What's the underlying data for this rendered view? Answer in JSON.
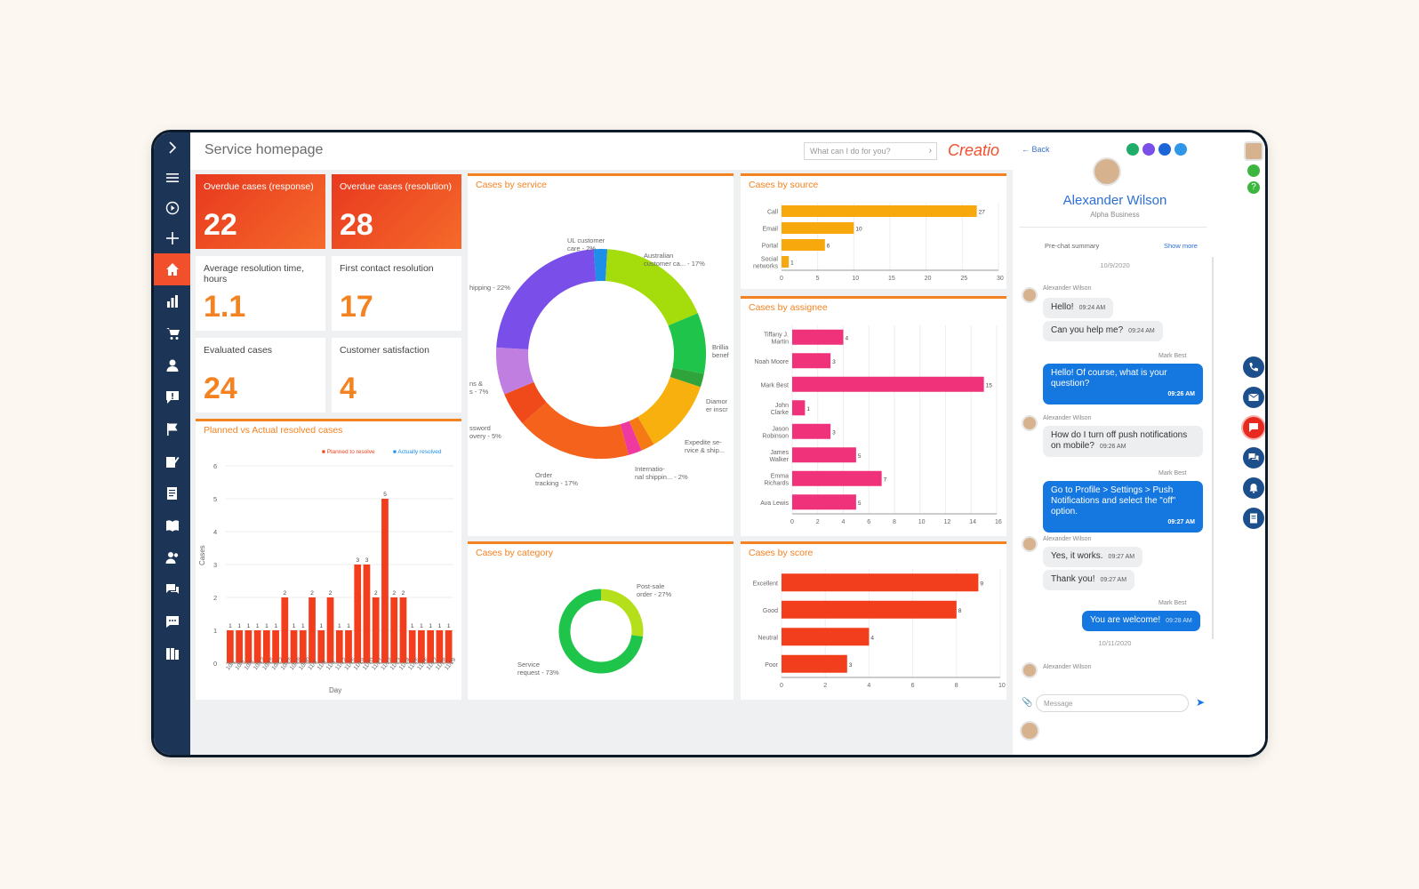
{
  "header": {
    "title": "Service homepage",
    "search_placeholder": "What can I do for you?",
    "logo": "Creatio"
  },
  "kpis": [
    {
      "label": "Overdue cases (response)",
      "value": "22"
    },
    {
      "label": "Overdue cases (resolution)",
      "value": "28"
    },
    {
      "label": "Average resolution time, hours",
      "value": "1.1"
    },
    {
      "label": "First contact resolution",
      "value": "17"
    },
    {
      "label": "Evaluated cases",
      "value": "24"
    },
    {
      "label": "Customer satisfaction",
      "value": "4"
    }
  ],
  "sidebar": {
    "icons": [
      "chevron-right-icon",
      "menu-icon",
      "play-icon",
      "plus-icon",
      "home-icon",
      "bar-chart-icon",
      "cart-icon",
      "person-icon",
      "alert-icon",
      "flag-icon",
      "edit-icon",
      "notes-icon",
      "book-icon",
      "contacts-icon",
      "chat-icon",
      "message-icon",
      "library-icon"
    ]
  },
  "chart_data": [
    {
      "type": "bar",
      "title": "Planned vs Actual resolved cases",
      "legend": [
        "Planned to resolve",
        "Actually resolved"
      ],
      "xlabel": "Day",
      "ylabel": "Cases",
      "ylim": [
        0,
        6
      ],
      "yticks": [
        "0",
        "1",
        "2",
        "3",
        "4",
        "5",
        "6"
      ],
      "categories": [
        "10/1",
        "10/5",
        "10/8",
        "10/12",
        "10/15",
        "10/22",
        "10/25",
        "10/28",
        "10/30",
        "11/3",
        "11/5",
        "11/8",
        "11/12",
        "11/15",
        "11/19",
        "11/20",
        "11/21",
        "11/22",
        "11/23",
        "11/24",
        "11/25",
        "11/26",
        "11/27",
        "11/28",
        "11/29"
      ],
      "values": [
        1,
        1,
        1,
        1,
        1,
        1,
        2,
        1,
        1,
        2,
        1,
        2,
        1,
        1,
        3,
        3,
        2,
        5,
        2,
        2,
        1,
        1,
        1,
        1,
        1
      ],
      "color": "#f23e1c"
    },
    {
      "type": "pie",
      "title": "Cases by service",
      "slices": [
        {
          "label": "UL customer care - 2%",
          "value": 2,
          "color": "#1e8fe8"
        },
        {
          "label": "Australian customer ca... - 17%",
          "value": 17,
          "color": "#a4dc0c"
        },
        {
          "label": "Brillia benef",
          "value": 9,
          "color": "#1fc44a"
        },
        {
          "label": "Diamor er inscr",
          "value": 2,
          "color": "#2ea43a"
        },
        {
          "label": "Expedite se- rvice & ship...",
          "value": 11,
          "color": "#f7b00d"
        },
        {
          "label": "Internatio- nal shippin... - 2%",
          "value": 2,
          "color": "#f57a16"
        },
        {
          "label": "",
          "value": 2,
          "color": "#ee3aa0"
        },
        {
          "label": "Order tracking - 17%",
          "value": 17,
          "color": "#f5621c"
        },
        {
          "label": "ssword overy - 5%",
          "value": 5,
          "color": "#f04a1a"
        },
        {
          "label": "ns & s - 7%",
          "value": 7,
          "color": "#c07ee0"
        },
        {
          "label": "hipping - 22%",
          "value": 22,
          "color": "#7a4ee8"
        }
      ]
    },
    {
      "type": "bar",
      "title": "Cases by source",
      "categories": [
        "Call",
        "Email",
        "Portal",
        "Social networks"
      ],
      "values": [
        27,
        10,
        6,
        1
      ],
      "xlim": [
        0,
        30
      ],
      "xticks": [
        "0",
        "5",
        "10",
        "15",
        "20",
        "25",
        "30"
      ],
      "color": "#f7a80d"
    },
    {
      "type": "bar",
      "title": "Cases by assignee",
      "categories": [
        "Tiffany J. Martin",
        "Noah Moore",
        "Mark Best",
        "John Clarke",
        "Jason Robinson",
        "James Walker",
        "Emma Richards",
        "Ava Lewis"
      ],
      "values": [
        4,
        3,
        15,
        1,
        3,
        5,
        7,
        5
      ],
      "xlim": [
        0,
        16
      ],
      "xticks": [
        "0",
        "2",
        "4",
        "6",
        "8",
        "10",
        "12",
        "14",
        "16"
      ],
      "color": "#f0327a"
    },
    {
      "type": "pie",
      "title": "Cases by category",
      "slices": [
        {
          "label": "Post-sale order - 27%",
          "value": 27,
          "color": "#b4df1a"
        },
        {
          "label": "Service request - 73%",
          "value": 73,
          "color": "#1fc44a"
        }
      ]
    },
    {
      "type": "bar",
      "title": "Cases by score",
      "categories": [
        "Excellent",
        "Good",
        "Neutral",
        "Poor"
      ],
      "values": [
        9,
        8,
        4,
        3
      ],
      "xlim": [
        0,
        10
      ],
      "xticks": [
        "0",
        "2",
        "4",
        "6",
        "8",
        "10"
      ],
      "color": "#f23e1c"
    }
  ],
  "chat": {
    "back": "Back",
    "name": "Alexander Wilson",
    "company": "Alpha Business",
    "summary": "Pre-chat summary",
    "show_more": "Show more",
    "date1": "10/9/2020",
    "date2": "10/11/2020",
    "input_placeholder": "Message",
    "messages": [
      {
        "from": "Alexander Wilson",
        "text": "Hello!",
        "time": "09:24 AM"
      },
      {
        "from": "",
        "text": "Can you help me?",
        "time": "09:24 AM"
      },
      {
        "from": "Mark Best",
        "text": "Hello! Of course, what is your question?",
        "time": "09:26 AM"
      },
      {
        "from": "Alexander Wilson",
        "text": "How do I turn off push notifications on mobile?",
        "time": "09:26 AM"
      },
      {
        "from": "Mark Best",
        "text": "Go to Profile > Settings > Push Notifications and select the \"off\" option.",
        "time": "09:27 AM"
      },
      {
        "from": "Alexander Wilson",
        "text": "Yes, it works.",
        "time": "09:27 AM"
      },
      {
        "from": "",
        "text": "Thank you!",
        "time": "09:27 AM"
      },
      {
        "from": "Mark Best",
        "text": "You are welcome!",
        "time": "09:28 AM"
      },
      {
        "from": "Alexander Wilson",
        "text": "",
        "time": ""
      }
    ]
  }
}
